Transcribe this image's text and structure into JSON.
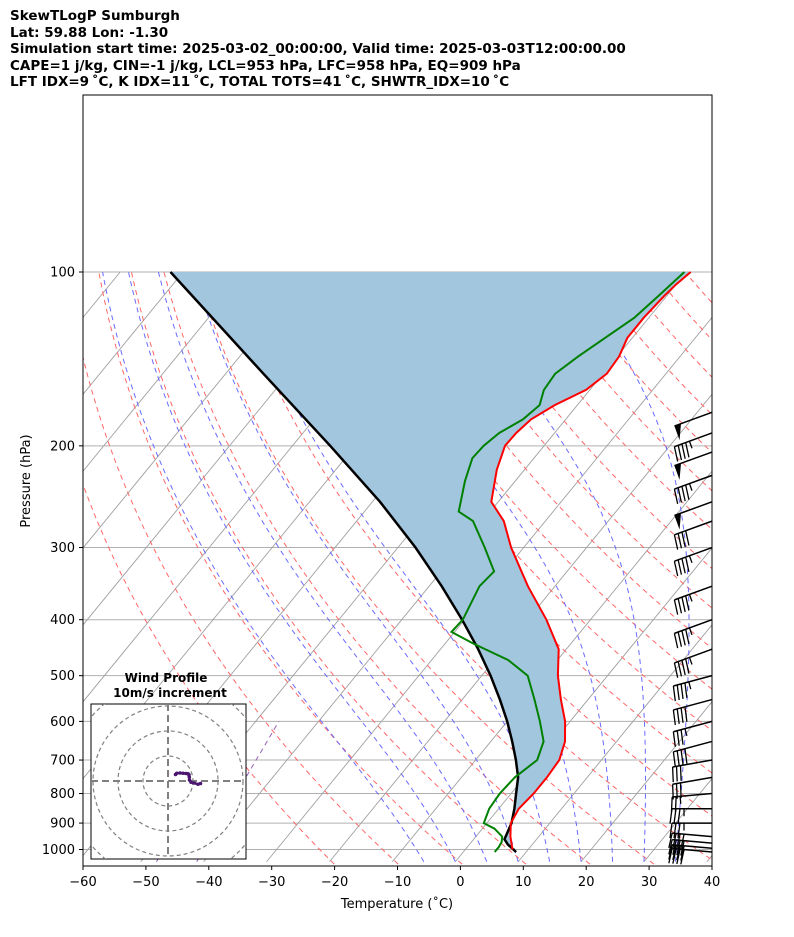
{
  "header": {
    "title": "SkewTLogP Sumburgh",
    "location": "Lat: 59.88   Lon: -1.30",
    "times": "Simulation start time: 2025-03-02_00:00:00, Valid time: 2025-03-03T12:00:00.00",
    "indices1": "CAPE=1 j/kg, CIN=-1 j/kg, LCL=953 hPa, LFC=958 hPa, EQ=909 hPa",
    "indices2": "LFT IDX=9 ˚C, K IDX=11 ˚C, TOTAL TOTS=41 ˚C, SHWTR_IDX=10 ˚C"
  },
  "chart_data": {
    "type": "skewt",
    "xlabel": "Temperature (˚C)",
    "ylabel": "Pressure (hPa)",
    "xlim": [
      -60,
      40
    ],
    "ylim": [
      1050,
      100
    ],
    "log_y": true,
    "grid": true,
    "x_ticks": [
      -60,
      -50,
      -40,
      -30,
      -20,
      -10,
      0,
      10,
      20,
      30,
      40
    ],
    "x_tick_labels": [
      "−60",
      "−50",
      "−40",
      "−30",
      "−20",
      "−10",
      "0",
      "10",
      "20",
      "30",
      "40"
    ],
    "y_ticks": [
      1000,
      900,
      800,
      700,
      600,
      500,
      400,
      300,
      200,
      100
    ],
    "y_tick_labels": [
      "1000",
      "900",
      "800",
      "700",
      "600",
      "500",
      "400",
      "300",
      "200",
      "100"
    ],
    "colors": {
      "temperature": "#ff0000",
      "dewpoint": "#008000",
      "parcel": "#000000",
      "cape_fill": "#a3c6df",
      "dry_adiabat": "#ff6666",
      "moist_adiabat": "#6a6aff",
      "mixing_ratio": "#9460b8",
      "isotherm": "#a0a0a0"
    },
    "series": [
      {
        "key": "temperature",
        "points": [
          [
            1000,
            7.5
          ],
          [
            950,
            5.5
          ],
          [
            900,
            3.8
          ],
          [
            850,
            3.2
          ],
          [
            800,
            3.6
          ],
          [
            750,
            3.6
          ],
          [
            700,
            3.3
          ],
          [
            650,
            1.8
          ],
          [
            600,
            -0.8
          ],
          [
            550,
            -4.3
          ],
          [
            500,
            -7.9
          ],
          [
            450,
            -11.2
          ],
          [
            400,
            -17.0
          ],
          [
            350,
            -24.3
          ],
          [
            300,
            -32.0
          ],
          [
            270,
            -36.6
          ],
          [
            250,
            -41.1
          ],
          [
            220,
            -44.4
          ],
          [
            200,
            -46.2
          ],
          [
            190,
            -46.1
          ],
          [
            180,
            -45.5
          ],
          [
            170,
            -43.6
          ],
          [
            160,
            -40.6
          ],
          [
            150,
            -39.4
          ],
          [
            140,
            -39.7
          ],
          [
            130,
            -40.8
          ],
          [
            120,
            -40.8
          ],
          [
            110,
            -40.4
          ],
          [
            105,
            -40.0
          ],
          [
            100,
            -39.3
          ]
        ]
      },
      {
        "key": "dewpoint",
        "points": [
          [
            1010,
            5.0
          ],
          [
            990,
            5.0
          ],
          [
            970,
            4.8
          ],
          [
            950,
            4.2
          ],
          [
            920,
            1.9
          ],
          [
            900,
            -0.5
          ],
          [
            850,
            -1.5
          ],
          [
            800,
            -1.8
          ],
          [
            750,
            -1.5
          ],
          [
            700,
            -0.2
          ],
          [
            650,
            -1.6
          ],
          [
            600,
            -4.8
          ],
          [
            550,
            -8.5
          ],
          [
            500,
            -12.7
          ],
          [
            470,
            -17.8
          ],
          [
            440,
            -25.5
          ],
          [
            420,
            -30.5
          ],
          [
            400,
            -30.3
          ],
          [
            350,
            -32.0
          ],
          [
            330,
            -31.6
          ],
          [
            300,
            -36.2
          ],
          [
            270,
            -41.5
          ],
          [
            260,
            -45.0
          ],
          [
            230,
            -48.0
          ],
          [
            210,
            -49.8
          ],
          [
            200,
            -49.6
          ],
          [
            190,
            -48.8
          ],
          [
            180,
            -46.8
          ],
          [
            170,
            -46.0
          ],
          [
            160,
            -47.3
          ],
          [
            150,
            -47.6
          ],
          [
            140,
            -46.2
          ],
          [
            120,
            -42.3
          ],
          [
            110,
            -41.3
          ],
          [
            100,
            -40.3
          ]
        ]
      },
      {
        "key": "parcel",
        "points": [
          [
            1010,
            8.4
          ],
          [
            980,
            6.1
          ],
          [
            960,
            4.9
          ],
          [
            900,
            3.9
          ],
          [
            850,
            2.5
          ],
          [
            800,
            0.8
          ],
          [
            750,
            -1.0
          ],
          [
            700,
            -3.6
          ],
          [
            650,
            -6.6
          ],
          [
            600,
            -10.0
          ],
          [
            550,
            -14.0
          ],
          [
            500,
            -18.6
          ],
          [
            450,
            -24.0
          ],
          [
            400,
            -30.4
          ],
          [
            350,
            -38.0
          ],
          [
            300,
            -47.2
          ],
          [
            250,
            -58.8
          ],
          [
            200,
            -74.0
          ],
          [
            150,
            -94.0
          ],
          [
            100,
            -122.0
          ]
        ]
      }
    ],
    "winds": [
      {
        "p": 1010,
        "spd": 40,
        "dir": 265
      },
      {
        "p": 995,
        "spd": 40,
        "dir": 265
      },
      {
        "p": 975,
        "spd": 40,
        "dir": 265
      },
      {
        "p": 950,
        "spd": 40,
        "dir": 265
      },
      {
        "p": 900,
        "spd": 35,
        "dir": 270
      },
      {
        "p": 850,
        "spd": 35,
        "dir": 270
      },
      {
        "p": 800,
        "spd": 25,
        "dir": 275
      },
      {
        "p": 750,
        "spd": 30,
        "dir": 280
      },
      {
        "p": 700,
        "spd": 30,
        "dir": 280
      },
      {
        "p": 650,
        "spd": 40,
        "dir": 285
      },
      {
        "p": 600,
        "spd": 35,
        "dir": 285
      },
      {
        "p": 550,
        "spd": 40,
        "dir": 285
      },
      {
        "p": 500,
        "spd": 45,
        "dir": 285
      },
      {
        "p": 450,
        "spd": 45,
        "dir": 290
      },
      {
        "p": 400,
        "spd": 45,
        "dir": 290
      },
      {
        "p": 350,
        "spd": 45,
        "dir": 290
      },
      {
        "p": 300,
        "spd": 45,
        "dir": 290
      },
      {
        "p": 270,
        "spd": 40,
        "dir": 290
      },
      {
        "p": 250,
        "spd": 50,
        "dir": 290
      },
      {
        "p": 225,
        "spd": 45,
        "dir": 290
      },
      {
        "p": 205,
        "spd": 50,
        "dir": 290
      },
      {
        "p": 190,
        "spd": 45,
        "dir": 290
      },
      {
        "p": 175,
        "spd": 50,
        "dir": 290
      }
    ],
    "inset": {
      "title": "Wind Profile",
      "subtitle": "10m/s increment",
      "ring_step_ms": 10,
      "hodograph": [
        [
          13.0,
          -1.0
        ],
        [
          12.0,
          -1.3
        ],
        [
          10.4,
          -0.8
        ],
        [
          9.2,
          -0.5
        ],
        [
          8.6,
          0.4
        ],
        [
          8.5,
          1.6
        ],
        [
          8.4,
          2.5
        ],
        [
          8.0,
          2.9
        ],
        [
          7.2,
          3.0
        ],
        [
          6.0,
          3.1
        ],
        [
          4.8,
          3.2
        ],
        [
          3.5,
          3.1
        ],
        [
          3.0,
          2.6
        ]
      ]
    }
  }
}
